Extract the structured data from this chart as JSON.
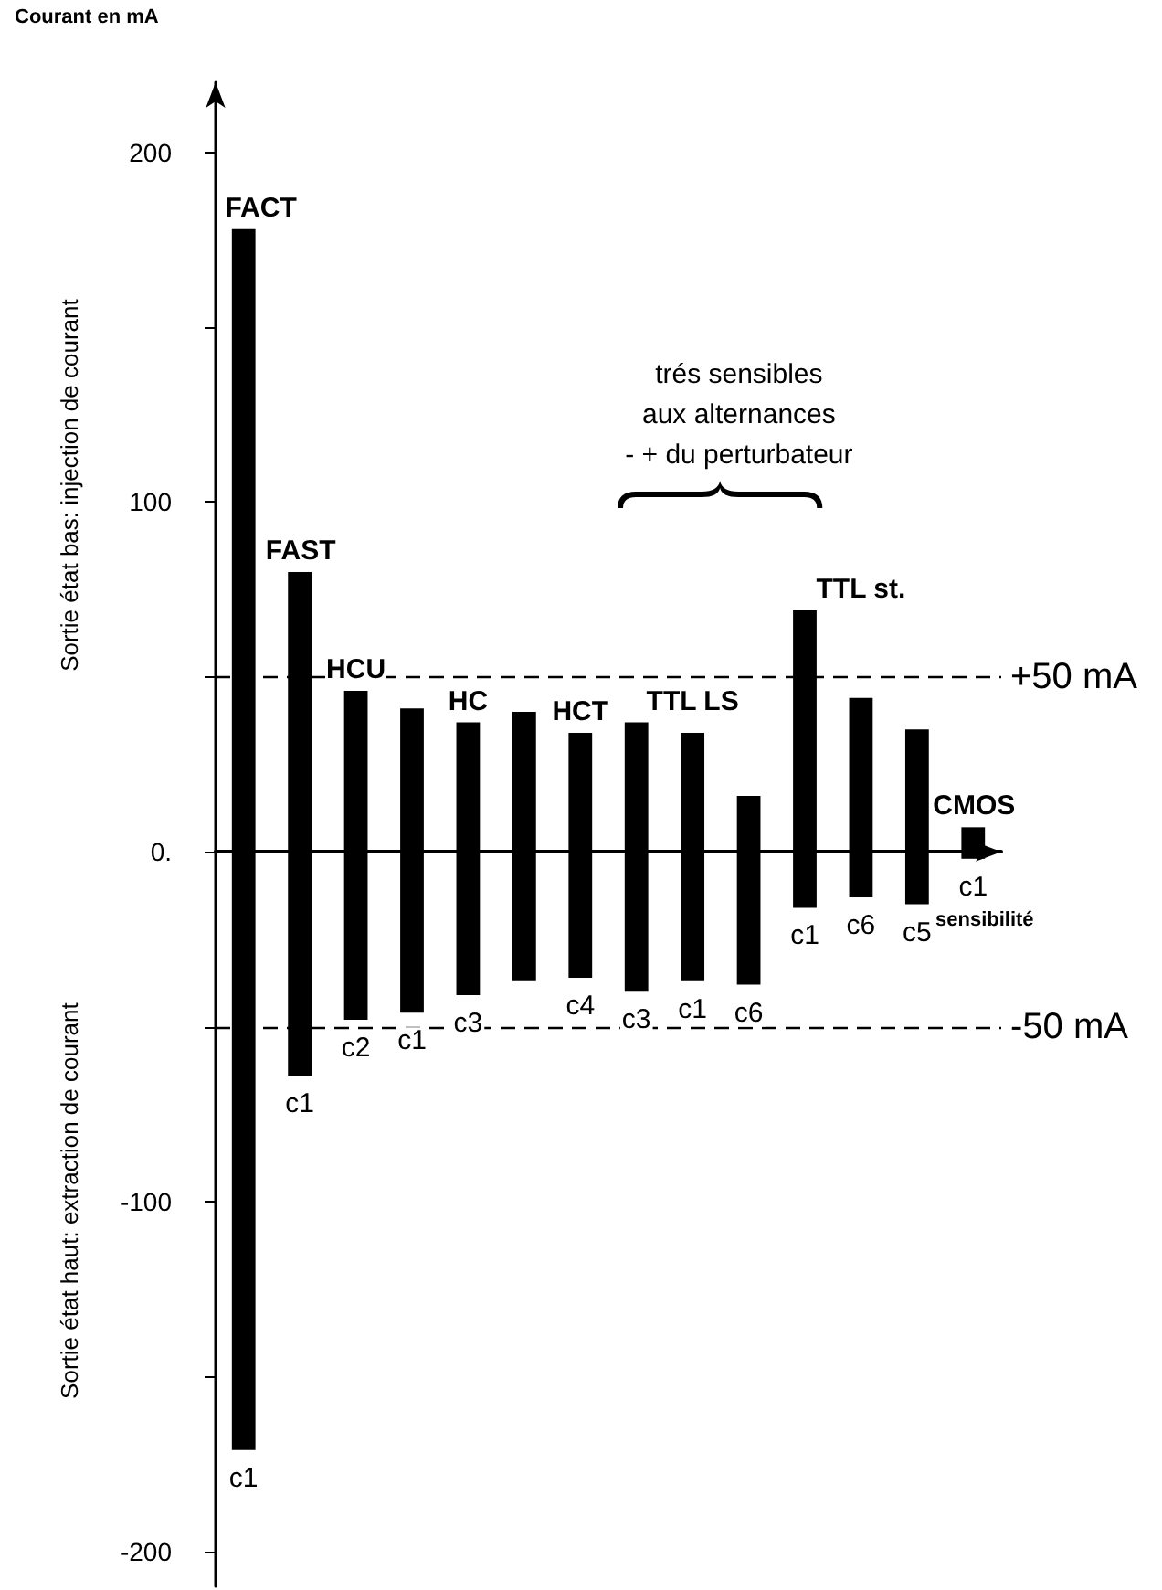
{
  "chart_data": {
    "type": "bar",
    "ylabel": "Courant en mA",
    "xlabel": "sensibilité",
    "categories": [
      "c1",
      "c1",
      "c2",
      "c1",
      "c3",
      null,
      "c4",
      "c3",
      "c1",
      "c6",
      "c1",
      "c6",
      "c5",
      "c1"
    ],
    "series": [
      {
        "name": "FACT",
        "color": "#000000",
        "base": [
          -171,
          null,
          null,
          null,
          null,
          null,
          null,
          null,
          null,
          null,
          null,
          null,
          null,
          null
        ],
        "values": [
          349,
          null,
          null,
          null,
          null,
          null,
          null,
          null,
          null,
          null,
          null,
          null,
          null,
          null
        ]
      },
      {
        "name": "FAST",
        "color": "#000000",
        "base": [
          null,
          -64,
          null,
          null,
          null,
          null,
          null,
          null,
          null,
          null,
          null,
          null,
          null,
          null
        ],
        "values": [
          null,
          144,
          null,
          null,
          null,
          null,
          null,
          null,
          null,
          null,
          null,
          null,
          null,
          null
        ]
      },
      {
        "name": "HCU",
        "color": "#000000",
        "base": [
          null,
          null,
          -48,
          null,
          null,
          null,
          null,
          null,
          null,
          null,
          null,
          null,
          null,
          null
        ],
        "values": [
          null,
          null,
          94,
          null,
          null,
          null,
          null,
          null,
          null,
          null,
          null,
          null,
          null,
          null
        ]
      },
      {
        "name": "HC",
        "color": "#000000",
        "base": [
          null,
          null,
          null,
          -46,
          -41,
          -37,
          null,
          null,
          null,
          null,
          null,
          null,
          null,
          null
        ],
        "values": [
          null,
          null,
          null,
          87,
          78,
          77,
          null,
          null,
          null,
          null,
          null,
          null,
          null,
          null
        ]
      },
      {
        "name": "HCT",
        "color": "#000000",
        "base": [
          null,
          null,
          null,
          null,
          null,
          null,
          -36,
          null,
          null,
          null,
          null,
          null,
          null,
          null
        ],
        "values": [
          null,
          null,
          null,
          null,
          null,
          null,
          70,
          null,
          null,
          null,
          null,
          null,
          null,
          null
        ]
      },
      {
        "name": "TTL LS",
        "color": "#000000",
        "base": [
          null,
          null,
          null,
          null,
          null,
          null,
          null,
          -40,
          -37,
          -38,
          null,
          null,
          null,
          null
        ],
        "values": [
          null,
          null,
          null,
          null,
          null,
          null,
          null,
          77,
          71,
          54,
          null,
          null,
          null,
          null
        ]
      },
      {
        "name": "TTL st.",
        "color": "#000000",
        "base": [
          null,
          null,
          null,
          null,
          null,
          null,
          null,
          null,
          null,
          null,
          -16,
          -13,
          -15,
          null
        ],
        "values": [
          null,
          null,
          null,
          null,
          null,
          null,
          null,
          null,
          null,
          null,
          85,
          57,
          50,
          null
        ]
      },
      {
        "name": "CMOS",
        "color": "#000000",
        "base": [
          null,
          null,
          null,
          null,
          null,
          null,
          null,
          null,
          null,
          null,
          null,
          null,
          null,
          -2
        ],
        "values": [
          null,
          null,
          null,
          null,
          null,
          null,
          null,
          null,
          null,
          null,
          null,
          null,
          null,
          9
        ]
      }
    ],
    "ylim": [
      -210,
      220
    ],
    "yticks": [
      {
        "value": -200,
        "label": "-200"
      },
      {
        "value": -150,
        "label": null
      },
      {
        "value": -100,
        "label": "-100"
      },
      {
        "value": -50,
        "label": null
      },
      {
        "value": 0,
        "label": "0."
      },
      {
        "value": 50,
        "label": null
      },
      {
        "value": 100,
        "label": "100"
      },
      {
        "value": 150,
        "label": null
      },
      {
        "value": 200,
        "label": "200"
      }
    ],
    "ref_lines": [
      {
        "axis": "y",
        "value": 50,
        "label": "+50 mA",
        "line_style": "dashed"
      },
      {
        "axis": "y",
        "value": -50,
        "label": "-50 mA",
        "line_style": "dashed"
      }
    ],
    "annotations": [
      "Sortie état bas: injection de courant",
      "Sortie état haut: extraction de courant",
      "trés sensibles\naux alternances\n- + du perturbateur"
    ],
    "grid": false,
    "legend": false
  }
}
